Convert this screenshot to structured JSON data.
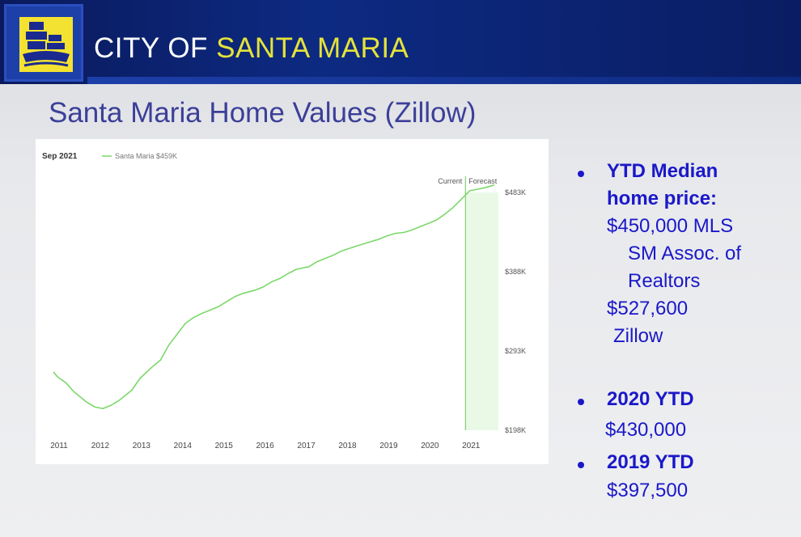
{
  "header": {
    "title_part1": "CITY OF ",
    "title_part2": "SANTA MARIA",
    "logo_icon": "city-seal-icon",
    "accent_color": "#e5e23a",
    "bar_color": "#0d2a82"
  },
  "slide": {
    "title": "Santa Maria Home Values (Zillow)"
  },
  "chart_data": {
    "type": "line",
    "header_date": "Sep 2021",
    "legend": "Santa Maria $459K",
    "series": [
      {
        "name": "Santa Maria $459K",
        "color": "#7bd86a",
        "x": [
          2011.0,
          2011.1,
          2011.3,
          2011.5,
          2011.8,
          2012.0,
          2012.2,
          2012.4,
          2012.6,
          2012.9,
          2013.1,
          2013.4,
          2013.6,
          2013.8,
          2014.0,
          2014.2,
          2014.4,
          2014.6,
          2014.8,
          2015.0,
          2015.2,
          2015.4,
          2015.6,
          2015.9,
          2016.1,
          2016.3,
          2016.5,
          2016.7,
          2016.9,
          2017.2,
          2017.4,
          2017.6,
          2017.8,
          2018.0,
          2018.3,
          2018.5,
          2018.7,
          2018.9,
          2019.1,
          2019.3,
          2019.5,
          2019.7,
          2019.9,
          2020.1,
          2020.3,
          2020.5,
          2020.7,
          2020.9,
          2021.1,
          2021.3,
          2021.5,
          2021.7
        ],
        "values": [
          268,
          262,
          255,
          244,
          232,
          226,
          224,
          228,
          234,
          246,
          260,
          274,
          282,
          300,
          313,
          326,
          333,
          338,
          342,
          346,
          352,
          358,
          362,
          366,
          370,
          376,
          380,
          386,
          391,
          394,
          400,
          404,
          408,
          413,
          418,
          421,
          424,
          427,
          431,
          434,
          435,
          438,
          442,
          446,
          450,
          457,
          465,
          475,
          485,
          487,
          489,
          492
        ]
      }
    ],
    "xlim": [
      2011.0,
      2021.8
    ],
    "ylim": [
      198,
      483
    ],
    "x_ticks": [
      "2011",
      "2012",
      "2013",
      "2014",
      "2015",
      "2016",
      "2017",
      "2018",
      "2019",
      "2020",
      "2021"
    ],
    "y_ticks": [
      "$483K",
      "$388K",
      "$293K",
      "$198K"
    ],
    "current_label": "Current",
    "forecast_label": "Forecast",
    "forecast_start": 2021.0,
    "forecast_color": "#e9f9e6",
    "grid": false
  },
  "bullets": {
    "ytd_heading": "YTD Median home price:",
    "ytd_heading_line1": "YTD Median",
    "ytd_heading_line2": "home price:",
    "mls_value": "$450,000 MLS",
    "mls_source_line1": "SM Assoc. of",
    "mls_source_line2": "Realtors",
    "zillow_value": "$527,600",
    "zillow_label": "Zillow",
    "y2020_label": "2020 YTD",
    "y2020_value": "$430,000",
    "y2019_label": "2019 YTD",
    "y2019_value": "$397,500",
    "color": "#1a18c9"
  }
}
